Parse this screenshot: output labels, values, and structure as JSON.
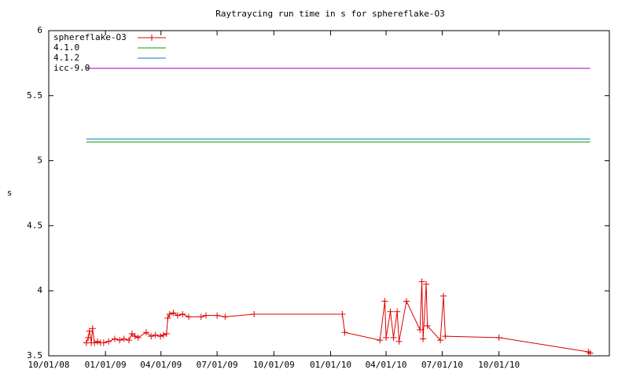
{
  "chart_data": {
    "type": "line",
    "title": "Raytraycing run time in s for sphereflake-O3",
    "ylabel": "s",
    "xlim": [
      "2008-10-01",
      "2011-03-29"
    ],
    "xticks": [
      {
        "value": "2008-10-01",
        "label": "10/01/08"
      },
      {
        "value": "2009-01-01",
        "label": "01/01/09"
      },
      {
        "value": "2009-04-01",
        "label": "04/01/09"
      },
      {
        "value": "2009-07-01",
        "label": "07/01/09"
      },
      {
        "value": "2009-10-01",
        "label": "10/01/09"
      },
      {
        "value": "2010-01-01",
        "label": "01/01/10"
      },
      {
        "value": "2010-04-01",
        "label": "04/01/10"
      },
      {
        "value": "2010-07-01",
        "label": "07/01/10"
      },
      {
        "value": "2010-10-01",
        "label": "10/01/10"
      }
    ],
    "ylim": [
      3.5,
      6
    ],
    "yticks": [
      3.5,
      4,
      4.5,
      5,
      5.5,
      6
    ],
    "legend": "top-left",
    "series": [
      {
        "name": "sphereflake-O3",
        "color": "#e00000",
        "markers": true,
        "x": [
          "2008-12-01",
          "2008-12-04",
          "2008-12-06",
          "2008-12-09",
          "2008-12-11",
          "2008-12-14",
          "2008-12-19",
          "2008-12-24",
          "2008-12-29",
          "2009-01-06",
          "2009-01-16",
          "2009-01-24",
          "2009-01-31",
          "2009-02-08",
          "2009-02-13",
          "2009-02-18",
          "2009-02-23",
          "2009-03-08",
          "2009-03-16",
          "2009-03-23",
          "2009-03-31",
          "2009-04-05",
          "2009-04-10",
          "2009-04-12",
          "2009-04-15",
          "2009-04-21",
          "2009-04-28",
          "2009-05-06",
          "2009-05-16",
          "2009-06-05",
          "2009-06-13",
          "2009-07-01",
          "2009-07-14",
          "2009-08-30",
          "2010-01-20",
          "2010-01-24",
          "2010-03-22",
          "2010-03-30",
          "2010-04-01",
          "2010-04-08",
          "2010-04-13",
          "2010-04-19",
          "2010-04-22",
          "2010-05-04",
          "2010-05-26",
          "2010-05-29",
          "2010-05-31",
          "2010-06-05",
          "2010-06-07",
          "2010-06-28",
          "2010-07-03",
          "2010-07-06",
          "2010-10-01",
          "2011-02-23",
          "2011-02-26"
        ],
        "values": [
          3.6,
          3.64,
          3.69,
          3.6,
          3.71,
          3.6,
          3.61,
          3.6,
          3.6,
          3.61,
          3.63,
          3.62,
          3.63,
          3.62,
          3.67,
          3.65,
          3.64,
          3.68,
          3.65,
          3.66,
          3.65,
          3.66,
          3.67,
          3.79,
          3.82,
          3.83,
          3.81,
          3.82,
          3.8,
          3.8,
          3.81,
          3.81,
          3.8,
          3.82,
          3.82,
          3.68,
          3.62,
          3.92,
          3.64,
          3.84,
          3.64,
          3.84,
          3.61,
          3.92,
          3.7,
          4.07,
          3.63,
          4.05,
          3.73,
          3.62,
          3.96,
          3.65,
          3.64,
          3.53,
          3.52
        ]
      },
      {
        "name": "4.1.0",
        "color": "#00a000",
        "markers": false,
        "x": [
          "2008-12-01",
          "2011-02-26"
        ],
        "values": [
          5.143,
          5.143
        ]
      },
      {
        "name": "4.1.2",
        "color": "#0080c0",
        "markers": false,
        "x": [
          "2008-12-01",
          "2011-02-26"
        ],
        "values": [
          5.167,
          5.167
        ]
      },
      {
        "name": "icc-9.0",
        "color": "#a000c0",
        "markers": false,
        "x": [
          "2008-12-01",
          "2011-02-26"
        ],
        "values": [
          5.71,
          5.71
        ]
      }
    ]
  }
}
